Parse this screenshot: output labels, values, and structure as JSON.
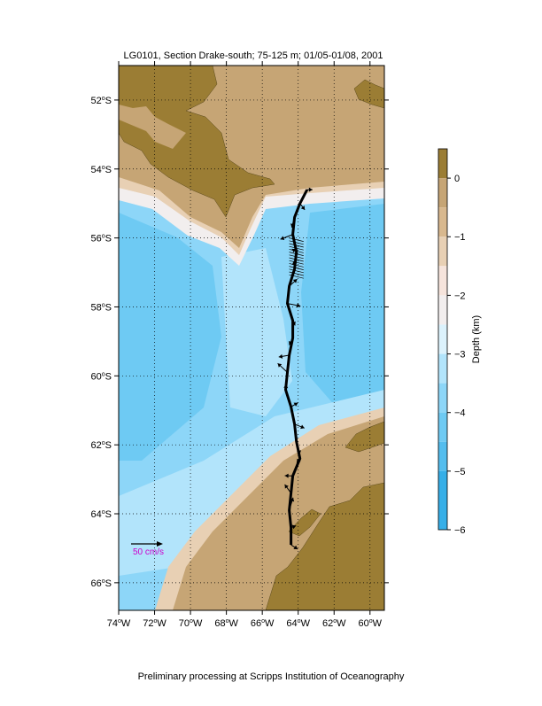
{
  "title": "LG0101, Section Drake-south; 75-125 m; 01/05-01/08, 2001",
  "footer": "Preliminary processing at Scripps Institution of Oceanography",
  "map": {
    "lon_range": [
      -74,
      -59.2
    ],
    "lat_range": [
      -66.8,
      -51.0
    ],
    "lon_ticks": [
      {
        "v": -74,
        "deg": "74",
        "h": "W"
      },
      {
        "v": -72,
        "deg": "72",
        "h": "W"
      },
      {
        "v": -70,
        "deg": "70",
        "h": "W"
      },
      {
        "v": -68,
        "deg": "68",
        "h": "W"
      },
      {
        "v": -66,
        "deg": "66",
        "h": "W"
      },
      {
        "v": -64,
        "deg": "64",
        "h": "W"
      },
      {
        "v": -62,
        "deg": "62",
        "h": "W"
      },
      {
        "v": -60,
        "deg": "60",
        "h": "W"
      }
    ],
    "lat_ticks": [
      {
        "v": -52,
        "deg": "52",
        "h": "S"
      },
      {
        "v": -54,
        "deg": "54",
        "h": "S"
      },
      {
        "v": -56,
        "deg": "56",
        "h": "S"
      },
      {
        "v": -58,
        "deg": "58",
        "h": "S"
      },
      {
        "v": -60,
        "deg": "60",
        "h": "S"
      },
      {
        "v": -62,
        "deg": "62",
        "h": "S"
      },
      {
        "v": -64,
        "deg": "64",
        "h": "S"
      },
      {
        "v": -66,
        "deg": "66",
        "h": "S"
      }
    ],
    "grid": true,
    "scale_label": "50 cm/s",
    "scale_color": "#cc00cc"
  },
  "colorbar": {
    "label": "Depth (km)",
    "range": [
      -6,
      0.5
    ],
    "ticks": [
      {
        "v": 0,
        "label": "0"
      },
      {
        "v": -1,
        "label": "−1"
      },
      {
        "v": -2,
        "label": "−2"
      },
      {
        "v": -3,
        "label": "−3"
      },
      {
        "v": -4,
        "label": "−4"
      },
      {
        "v": -5,
        "label": "−5"
      },
      {
        "v": -6,
        "label": "−6"
      }
    ],
    "bands": [
      {
        "from": 0,
        "to": 0.5,
        "color": "#9b7d34"
      },
      {
        "from": -0.5,
        "to": 0,
        "color": "#c6a575"
      },
      {
        "from": -1,
        "to": -0.5,
        "color": "#d8b88e"
      },
      {
        "from": -1.5,
        "to": -1,
        "color": "#e8d0b4"
      },
      {
        "from": -2,
        "to": -1.5,
        "color": "#f6e4dc"
      },
      {
        "from": -2.5,
        "to": -2,
        "color": "#f2eeee"
      },
      {
        "from": -3,
        "to": -2.5,
        "color": "#dcf2fc"
      },
      {
        "from": -3.5,
        "to": -3,
        "color": "#b2e4fb"
      },
      {
        "from": -4,
        "to": -3.5,
        "color": "#8dd6f8"
      },
      {
        "from": -4.5,
        "to": -4,
        "color": "#6ecaf3"
      },
      {
        "from": -5,
        "to": -4.5,
        "color": "#53bdee"
      },
      {
        "from": -6,
        "to": -5,
        "color": "#36afe8"
      }
    ]
  },
  "colors": {
    "land": "#9b7d34",
    "shelf": "#c6a575",
    "slope": "#e8d0b4",
    "deep_light": "#b2e4fb",
    "deep": "#8dd6f8",
    "deeper": "#6ecaf3",
    "vector": "#000000"
  },
  "ship_track": [
    [
      -63.5,
      -54.6
    ],
    [
      -63.9,
      -55.0
    ],
    [
      -64.2,
      -55.4
    ],
    [
      -64.3,
      -55.9
    ],
    [
      -64.1,
      -56.4
    ],
    [
      -64.2,
      -56.9
    ],
    [
      -64.5,
      -57.4
    ],
    [
      -64.6,
      -57.9
    ],
    [
      -64.3,
      -58.4
    ],
    [
      -64.3,
      -58.9
    ],
    [
      -64.5,
      -59.4
    ],
    [
      -64.6,
      -59.9
    ],
    [
      -64.7,
      -60.4
    ],
    [
      -64.4,
      -60.9
    ],
    [
      -64.2,
      -61.4
    ],
    [
      -64.1,
      -61.9
    ],
    [
      -63.9,
      -62.4
    ],
    [
      -64.3,
      -62.9
    ],
    [
      -64.4,
      -63.4
    ],
    [
      -64.5,
      -63.9
    ],
    [
      -64.4,
      -64.4
    ],
    [
      -64.4,
      -64.9
    ]
  ]
}
